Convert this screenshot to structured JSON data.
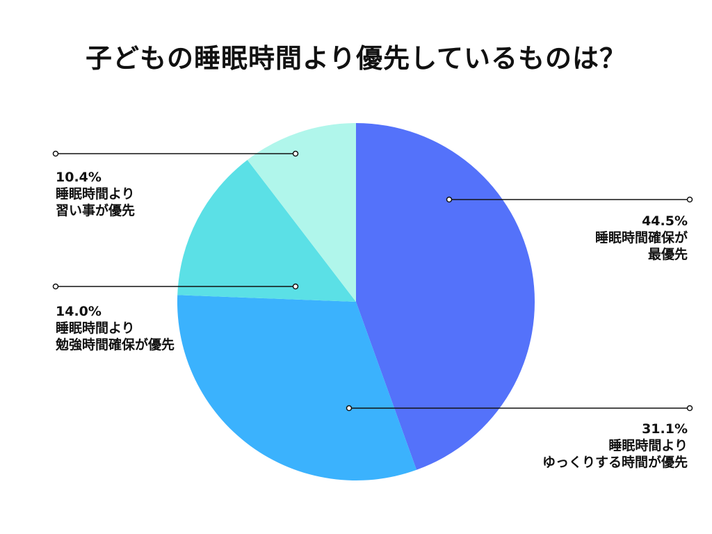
{
  "title": "子どもの睡眠時間より優先しているものは？",
  "chart_data": {
    "type": "pie",
    "title": "子どもの睡眠時間より優先しているものは？",
    "slices": [
      {
        "label": "睡眠時間確保が最優先",
        "value": 44.5,
        "value_label": "44.5%",
        "line1": "睡眠時間確保が",
        "line2": "最優先",
        "color": "#5472FA"
      },
      {
        "label": "睡眠時間よりゆっくりする時間が優先",
        "value": 31.1,
        "value_label": "31.1%",
        "line1": "睡眠時間より",
        "line2": "ゆっくりする時間が優先",
        "color": "#3BB2FD"
      },
      {
        "label": "睡眠時間より勉強時間確保が優先",
        "value": 14.0,
        "value_label": "14.0%",
        "line1": "睡眠時間より",
        "line2": "勉強時間確保が優先",
        "color": "#5BE0E6"
      },
      {
        "label": "睡眠時間より習い事が優先",
        "value": 10.4,
        "value_label": "10.4%",
        "line1": "睡眠時間より",
        "line2": "習い事が優先",
        "color": "#B0F6EB"
      }
    ]
  }
}
